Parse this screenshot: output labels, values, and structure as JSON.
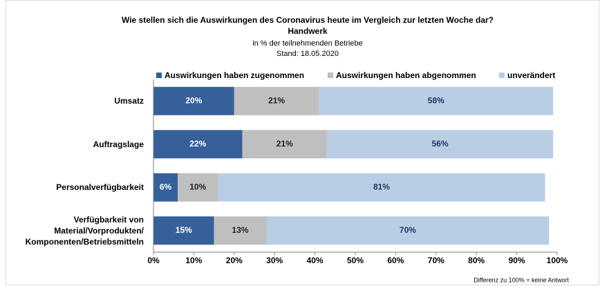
{
  "chart_data": {
    "type": "stacked_barh",
    "title": "Wie stellen sich die Auswirkungen des Coronavirus heute im Vergleich zur letzten Woche dar?",
    "subtitle": "Handwerk",
    "unit_note": "in % der teilnehmenden Betriebe",
    "date_note": "Stand:  18.05.2020",
    "footnote": "Differenz zu 100% = keine Antwort",
    "categories": [
      "Umsatz",
      "Auftragslage",
      "Personalverfügbarkeit",
      "Verfügbarkeit von\nMaterial/Vorprodukten/\nKomponenten/Betriebsmitteln"
    ],
    "series": [
      {
        "name": "Auswirkungen haben zugenommen",
        "color": "#36609a",
        "values": [
          20,
          22,
          6,
          15
        ],
        "value_labels": [
          "20%",
          "22%",
          "6%",
          "15%"
        ]
      },
      {
        "name": "Auswirkungen haben abgenommen",
        "color": "#bfbfbf",
        "values": [
          21,
          21,
          10,
          13
        ],
        "value_labels": [
          "21%",
          "21%",
          "10%",
          "13%"
        ]
      },
      {
        "name": "unverändert",
        "color": "#b9cde5",
        "values": [
          58,
          56,
          81,
          70
        ],
        "value_labels": [
          "58%",
          "56%",
          "81%",
          "70%"
        ]
      }
    ],
    "xlim": [
      0,
      100
    ],
    "xticks": [
      {
        "value": 0,
        "label": "0%"
      },
      {
        "value": 10,
        "label": "10%"
      },
      {
        "value": 20,
        "label": "20%"
      },
      {
        "value": 30,
        "label": "30%"
      },
      {
        "value": 40,
        "label": "40%"
      },
      {
        "value": 50,
        "label": "50%"
      },
      {
        "value": 60,
        "label": "60%"
      },
      {
        "value": 70,
        "label": "70%"
      },
      {
        "value": 80,
        "label": "80%"
      },
      {
        "value": 90,
        "label": "90%"
      },
      {
        "value": 100,
        "label": "100%"
      }
    ],
    "legend": "top"
  }
}
